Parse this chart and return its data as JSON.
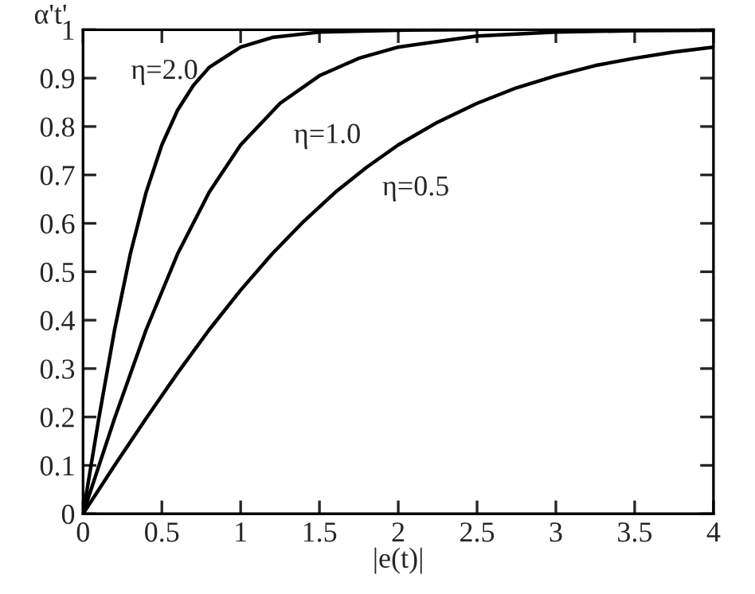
{
  "chart_data": {
    "type": "line",
    "ylabel": "α't'",
    "xlabel": "|e(t)|",
    "xlim": [
      0,
      4
    ],
    "ylim": [
      0,
      1
    ],
    "xticks": [
      0,
      0.5,
      1,
      1.5,
      2,
      2.5,
      3,
      3.5,
      4
    ],
    "yticks": [
      0,
      0.1,
      0.2,
      0.3,
      0.4,
      0.5,
      0.6,
      0.7,
      0.8,
      0.9,
      1
    ],
    "grid": false,
    "marker": "none",
    "line_style": "solid",
    "series": [
      {
        "name": "η=2.0",
        "color": "#000000",
        "x": [
          0,
          0.1,
          0.2,
          0.3,
          0.4,
          0.5,
          0.6,
          0.7,
          0.8,
          1.0,
          1.2,
          1.5,
          2,
          2.5
        ],
        "values": [
          0,
          0.197,
          0.38,
          0.537,
          0.664,
          0.762,
          0.834,
          0.885,
          0.922,
          0.964,
          0.984,
          0.995,
          0.999,
          1
        ]
      },
      {
        "name": "η=1.0",
        "color": "#000000",
        "x": [
          0,
          0.2,
          0.4,
          0.6,
          0.8,
          1,
          1.25,
          1.5,
          1.75,
          2,
          2.5,
          3,
          3.5,
          4
        ],
        "values": [
          0,
          0.197,
          0.38,
          0.537,
          0.664,
          0.762,
          0.848,
          0.905,
          0.941,
          0.964,
          0.987,
          0.995,
          0.998,
          0.999
        ]
      },
      {
        "name": "η=0.5",
        "color": "#000000",
        "x": [
          0,
          0.2,
          0.4,
          0.6,
          0.8,
          1.0,
          1.2,
          1.4,
          1.6,
          1.8,
          2,
          2.25,
          2.5,
          2.75,
          3,
          3.25,
          3.5,
          3.75,
          4
        ],
        "values": [
          0,
          0.1,
          0.197,
          0.291,
          0.38,
          0.462,
          0.537,
          0.604,
          0.664,
          0.716,
          0.762,
          0.809,
          0.848,
          0.88,
          0.905,
          0.926,
          0.941,
          0.954,
          0.964
        ]
      }
    ]
  }
}
